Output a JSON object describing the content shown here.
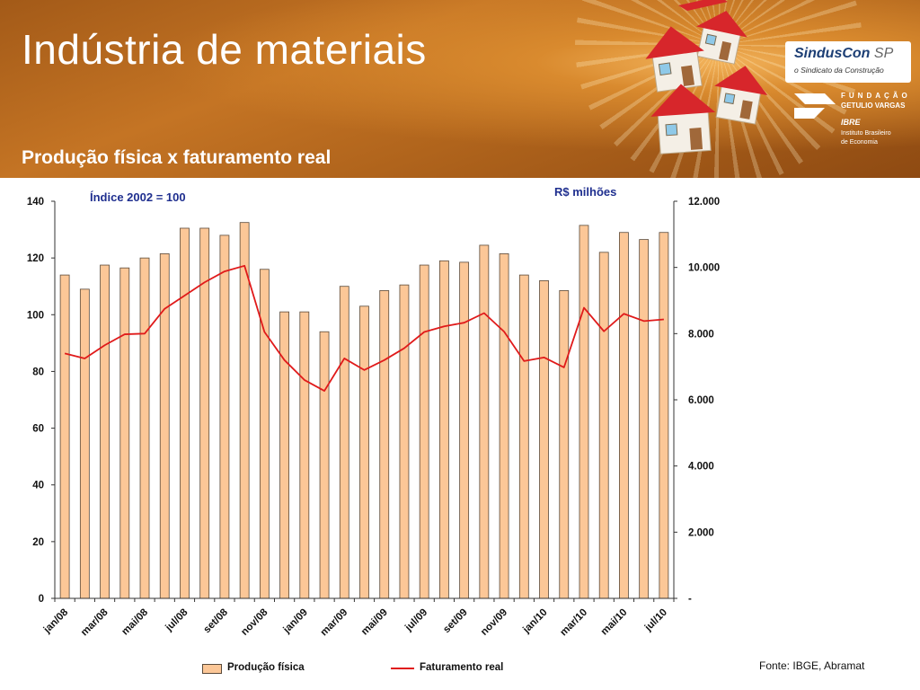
{
  "header": {
    "title": "Indústria de materiais",
    "subtitle": "Produção física x faturamento real"
  },
  "logos": {
    "sinduscon_name": "SindusCon",
    "sinduscon_region": "SP",
    "sinduscon_tagline": "o Sindicato da Construção",
    "fgv_line1": "FUNDAÇÃO",
    "fgv_line2": "GETULIO VARGAS",
    "fgv_line3": "IBRE",
    "fgv_line4": "Instituto Brasileiro",
    "fgv_line5": "de Economia"
  },
  "source": "Fonte: IBGE, Abramat",
  "colors": {
    "bar": "#fcc797",
    "bar_border": "#5a4a3a",
    "line": "#e01a1a",
    "unit_label": "#1f2f8f"
  },
  "chart_data": {
    "type": "bar",
    "left_axis_label": "Índice 2002 = 100",
    "right_axis_label": "R$ milhões",
    "categories": [
      "jan/08",
      "fev/08",
      "mar/08",
      "abr/08",
      "mai/08",
      "jun/08",
      "jul/08",
      "ago/08",
      "set/08",
      "out/08",
      "nov/08",
      "dez/08",
      "jan/09",
      "fev/09",
      "mar/09",
      "abr/09",
      "mai/09",
      "jun/09",
      "jul/09",
      "ago/09",
      "set/09",
      "out/09",
      "nov/09",
      "dez/09",
      "jan/10",
      "fev/10",
      "mar/10",
      "abr/10",
      "mai/10",
      "jun/10",
      "jul/10"
    ],
    "visible_tick_labels": [
      "jan/08",
      "mar/08",
      "mai/08",
      "jul/08",
      "set/08",
      "nov/08",
      "jan/09",
      "mar/09",
      "mai/09",
      "jul/09",
      "set/09",
      "nov/09",
      "jan/10",
      "mar/10",
      "mai/10",
      "jul/10"
    ],
    "left_ylim": [
      0,
      140
    ],
    "left_ticks": [
      "0",
      "20",
      "40",
      "60",
      "80",
      "100",
      "120",
      "140"
    ],
    "right_ylim": [
      0,
      12000
    ],
    "right_ticks": [
      "-",
      "2.000",
      "4.000",
      "6.000",
      "8.000",
      "10.000",
      "12.000"
    ],
    "grid": false,
    "legend_position": "bottom",
    "series": [
      {
        "name": "Produção física",
        "type": "bar",
        "axis": "left",
        "values": [
          114,
          109,
          117.5,
          116.5,
          120,
          121.5,
          130.5,
          130.5,
          128,
          132.5,
          116,
          101,
          101,
          94,
          110,
          103,
          108.5,
          110.5,
          117.5,
          119,
          118.5,
          124.5,
          121.5,
          114,
          112,
          108.5,
          131.5,
          122,
          129,
          126.5,
          129
        ]
      },
      {
        "name": "Faturamento real",
        "type": "line",
        "axis": "right",
        "values": [
          7400,
          7250,
          7650,
          7980,
          8000,
          8750,
          9150,
          9550,
          9880,
          10050,
          8050,
          7200,
          6600,
          6270,
          7250,
          6900,
          7200,
          7560,
          8050,
          8220,
          8330,
          8620,
          8060,
          7170,
          7280,
          6980,
          8780,
          8070,
          8600,
          8380,
          8430
        ]
      }
    ]
  }
}
